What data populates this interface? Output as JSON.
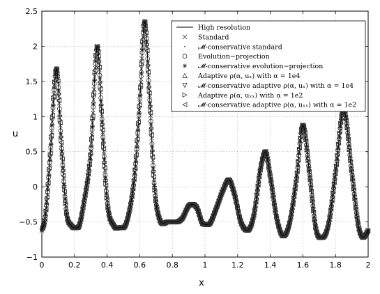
{
  "chart_data": {
    "type": "line",
    "title": "",
    "xlabel": "x",
    "ylabel": "u",
    "xlim": [
      0,
      2
    ],
    "ylim": [
      -1,
      2.5
    ],
    "grid": true,
    "legend_position": "top-right",
    "x_ticks": [
      "0",
      "0.2",
      "0.4",
      "0.6",
      "0.8",
      "1",
      "1.2",
      "1.4",
      "1.6",
      "1.8",
      "2"
    ],
    "y_ticks": [
      "−1",
      "−0.5",
      "0",
      "0.5",
      "1",
      "1.5",
      "2",
      "2.5"
    ],
    "series": [
      {
        "name": "High resolution",
        "marker": "line"
      },
      {
        "name": "Standard",
        "marker": "x"
      },
      {
        "name": "𝓜-conservative standard",
        "marker": "dot"
      },
      {
        "name": "Evolution−projection",
        "marker": "circle"
      },
      {
        "name": "𝓜-conservative evolution−projection",
        "marker": "star"
      },
      {
        "name": "Adaptive ρ(α, uₓ) with α = 1e4",
        "marker": "triangle-up"
      },
      {
        "name": "𝓜-conservative adaptive ρ(α, uₓ) with α = 1e4",
        "marker": "triangle-down"
      },
      {
        "name": "Adaptive ρ(α, uₓₓ) with α = 1e2",
        "marker": "triangle-right"
      },
      {
        "name": "𝓜-conservative adaptive ρ(α, uₓₓ) with α = 1e2",
        "marker": "triangle-left"
      }
    ],
    "curve_keypoints": {
      "x": [
        0.0,
        0.02,
        0.05,
        0.09,
        0.12,
        0.15,
        0.18,
        0.22,
        0.26,
        0.3,
        0.34,
        0.37,
        0.4,
        0.44,
        0.48,
        0.52,
        0.57,
        0.6,
        0.63,
        0.66,
        0.69,
        0.72,
        0.77,
        0.82,
        0.86,
        0.9,
        0.925,
        0.95,
        0.99,
        1.03,
        1.07,
        1.11,
        1.145,
        1.18,
        1.22,
        1.26,
        1.3,
        1.34,
        1.37,
        1.4,
        1.44,
        1.48,
        1.52,
        1.56,
        1.6,
        1.64,
        1.68,
        1.72,
        1.76,
        1.8,
        1.85,
        1.9,
        1.94,
        1.97,
        2.0
      ],
      "y": [
        -0.62,
        -0.45,
        0.4,
        1.68,
        0.6,
        -0.35,
        -0.55,
        -0.58,
        -0.2,
        0.5,
        2.0,
        0.9,
        -0.2,
        -0.55,
        -0.58,
        -0.5,
        0.2,
        1.2,
        2.35,
        1.3,
        0.0,
        -0.45,
        -0.5,
        -0.5,
        -0.45,
        -0.27,
        -0.25,
        -0.3,
        -0.53,
        -0.52,
        -0.3,
        -0.05,
        0.1,
        -0.1,
        -0.5,
        -0.62,
        -0.4,
        0.25,
        0.5,
        0.15,
        -0.45,
        -0.7,
        -0.5,
        0.1,
        0.88,
        0.2,
        -0.6,
        -0.72,
        -0.5,
        0.2,
        1.1,
        0.2,
        -0.55,
        -0.72,
        -0.62
      ]
    }
  }
}
